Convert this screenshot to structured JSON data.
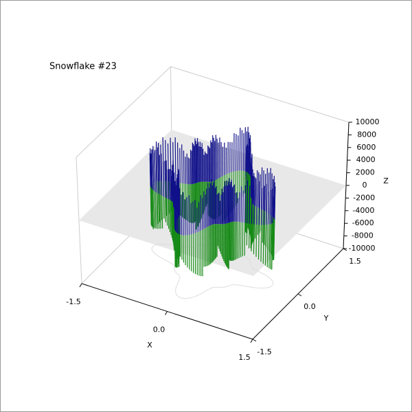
{
  "chart_data": {
    "type": "surface3d",
    "title": "Snowflake #23",
    "xlabel": "X",
    "ylabel": "Y",
    "zlabel": "Z",
    "xlim": [
      -1.5,
      1.5
    ],
    "xticks": [
      -1.5,
      {
        "value": 0,
        "label": "0.0"
      },
      1.5
    ],
    "ylim": [
      -1.5,
      1.5
    ],
    "yticks": [
      -1.5,
      {
        "value": 0,
        "label": "0.0"
      },
      1.5
    ],
    "zlim": [
      -10000,
      10000
    ],
    "zticks": [
      -10000,
      -8000,
      -6000,
      -4000,
      -2000,
      0,
      2000,
      4000,
      6000,
      8000,
      10000
    ],
    "colors": [
      "#10108a",
      "#178a17"
    ]
  }
}
